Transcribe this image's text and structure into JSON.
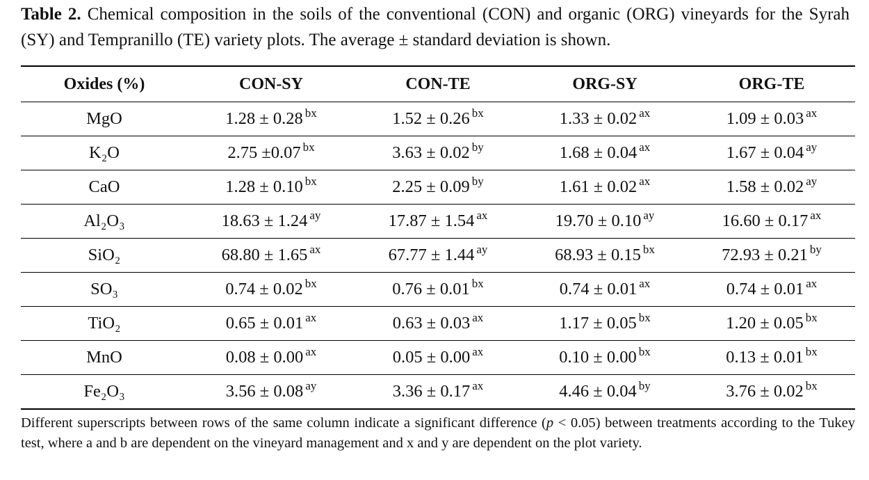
{
  "caption": {
    "label": "Table 2.",
    "text": "Chemical composition in the soils of the conventional (CON) and organic (ORG) vineyards for the Syrah (SY) and Tempranillo (TE) variety plots. The average ± standard deviation is shown."
  },
  "table": {
    "header": [
      "Oxides (%)",
      "CON-SY",
      "CON-TE",
      "ORG-SY",
      "ORG-TE"
    ],
    "rows": [
      {
        "oxide": "MgO",
        "cells": [
          {
            "value": "1.28 ± 0.28",
            "sup": "bx"
          },
          {
            "value": "1.52 ± 0.26",
            "sup": "bx"
          },
          {
            "value": "1.33 ± 0.02",
            "sup": "ax"
          },
          {
            "value": "1.09 ± 0.03",
            "sup": "ax"
          }
        ]
      },
      {
        "oxide": "K₂O",
        "cells": [
          {
            "value": "2.75 ±0.07",
            "sup": "bx"
          },
          {
            "value": "3.63 ± 0.02",
            "sup": "by"
          },
          {
            "value": "1.68 ± 0.04",
            "sup": "ax"
          },
          {
            "value": "1.67 ± 0.04",
            "sup": "ay"
          }
        ]
      },
      {
        "oxide": "CaO",
        "cells": [
          {
            "value": "1.28 ± 0.10",
            "sup": "bx"
          },
          {
            "value": "2.25 ± 0.09",
            "sup": "by"
          },
          {
            "value": "1.61 ± 0.02",
            "sup": "ax"
          },
          {
            "value": "1.58 ± 0.02",
            "sup": "ay"
          }
        ]
      },
      {
        "oxide": "Al₂O₃",
        "cells": [
          {
            "value": "18.63 ± 1.24",
            "sup": "ay"
          },
          {
            "value": "17.87 ± 1.54",
            "sup": "ax"
          },
          {
            "value": "19.70 ± 0.10",
            "sup": "ay"
          },
          {
            "value": "16.60 ± 0.17",
            "sup": "ax"
          }
        ]
      },
      {
        "oxide": "SiO₂",
        "cells": [
          {
            "value": "68.80 ± 1.65",
            "sup": "ax"
          },
          {
            "value": "67.77 ± 1.44",
            "sup": "ay"
          },
          {
            "value": "68.93 ± 0.15",
            "sup": "bx"
          },
          {
            "value": "72.93 ± 0.21",
            "sup": "by"
          }
        ]
      },
      {
        "oxide": "SO₃",
        "cells": [
          {
            "value": "0.74 ± 0.02",
            "sup": "bx"
          },
          {
            "value": "0.76 ± 0.01",
            "sup": "bx"
          },
          {
            "value": "0.74 ± 0.01",
            "sup": "ax"
          },
          {
            "value": "0.74 ± 0.01",
            "sup": "ax"
          }
        ]
      },
      {
        "oxide": "TiO₂",
        "cells": [
          {
            "value": "0.65 ± 0.01",
            "sup": "ax"
          },
          {
            "value": "0.63 ± 0.03",
            "sup": "ax"
          },
          {
            "value": "1.17 ± 0.05",
            "sup": "bx"
          },
          {
            "value": "1.20 ± 0.05",
            "sup": "bx"
          }
        ]
      },
      {
        "oxide": "MnO",
        "cells": [
          {
            "value": "0.08 ± 0.00",
            "sup": "ax"
          },
          {
            "value": "0.05 ± 0.00",
            "sup": "ax"
          },
          {
            "value": "0.10 ± 0.00",
            "sup": "bx"
          },
          {
            "value": "0.13 ± 0.01",
            "sup": "bx"
          }
        ]
      },
      {
        "oxide": "Fe₂O₃",
        "cells": [
          {
            "value": "3.56 ± 0.08",
            "sup": "ay"
          },
          {
            "value": "3.36 ± 0.17",
            "sup": "ax"
          },
          {
            "value": "4.46 ± 0.04",
            "sup": "by"
          },
          {
            "value": "3.76 ± 0.02",
            "sup": "bx"
          }
        ]
      }
    ]
  },
  "footnote": {
    "before": "Different superscripts between rows of the same column indicate a significant difference (",
    "italic": "p",
    "after": " < 0.05) between treatments according to the Tukey test, where a and b are dependent on the vineyard management and x and y are dependent on the plot variety."
  }
}
